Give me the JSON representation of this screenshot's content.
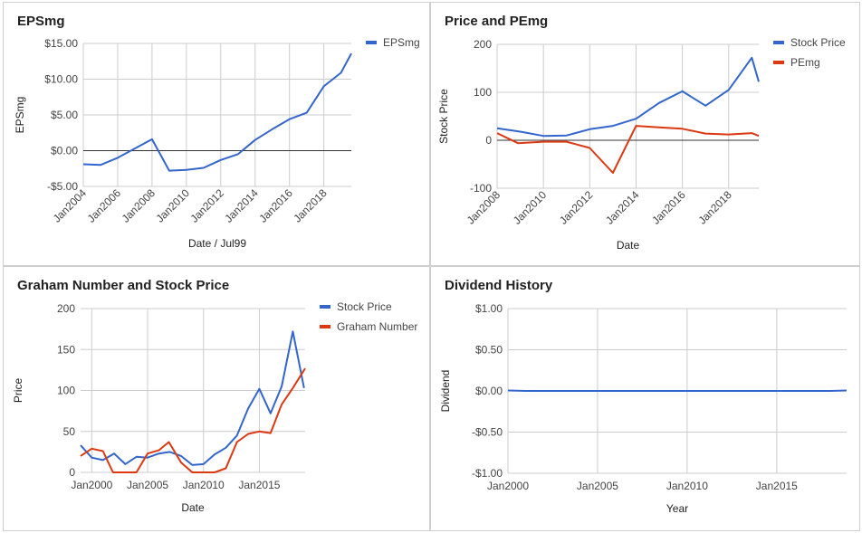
{
  "colors": {
    "blue": "#3366cc",
    "red": "#dc3912",
    "grid": "#cccccc",
    "axis_text": "#444444",
    "zero": "#333333"
  },
  "chart_data": [
    {
      "type": "line",
      "title": "EPSmg",
      "xlabel": "Date / Jul99",
      "ylabel": "EPSmg",
      "y_ticks": [
        {
          "v": 15,
          "label": "$15.00"
        },
        {
          "v": 10,
          "label": "$10.00"
        },
        {
          "v": 5,
          "label": "$5.00"
        },
        {
          "v": 0,
          "label": "$0.00"
        },
        {
          "v": -5,
          "label": "-$5.00"
        }
      ],
      "ylim": [
        -5,
        15
      ],
      "xlim": [
        2004,
        2019.6
      ],
      "x_ticks": [
        {
          "v": 2004,
          "label": "Jan2004"
        },
        {
          "v": 2006,
          "label": "Jan2006"
        },
        {
          "v": 2008,
          "label": "Jan2008"
        },
        {
          "v": 2010,
          "label": "Jan2010"
        },
        {
          "v": 2012,
          "label": "Jan2012"
        },
        {
          "v": 2014,
          "label": "Jan2014"
        },
        {
          "v": 2016,
          "label": "Jan2016"
        },
        {
          "v": 2018,
          "label": "Jan2018"
        }
      ],
      "rotate_x": true,
      "legend_position": "right",
      "series": [
        {
          "name": "EPSmg",
          "color": "#3366cc",
          "points": [
            [
              2004,
              -1.9
            ],
            [
              2005,
              -2.0
            ],
            [
              2006,
              -1.0
            ],
            [
              2007,
              0.3
            ],
            [
              2008,
              1.6
            ],
            [
              2009,
              -2.8
            ],
            [
              2010,
              -2.7
            ],
            [
              2011,
              -2.4
            ],
            [
              2012,
              -1.3
            ],
            [
              2013,
              -0.5
            ],
            [
              2014,
              1.5
            ],
            [
              2015,
              3.0
            ],
            [
              2016,
              4.4
            ],
            [
              2017,
              5.3
            ],
            [
              2018,
              9.0
            ],
            [
              2019,
              10.9
            ],
            [
              2019.6,
              13.6
            ]
          ]
        }
      ]
    },
    {
      "type": "line",
      "title": "Price and PEmg",
      "xlabel": "Date",
      "ylabel": "Stock Price",
      "y_ticks": [
        {
          "v": 200,
          "label": "200"
        },
        {
          "v": 100,
          "label": "100"
        },
        {
          "v": 0,
          "label": "0"
        },
        {
          "v": -100,
          "label": "-100"
        }
      ],
      "ylim": [
        -100,
        200
      ],
      "xlim": [
        2008,
        2019.3
      ],
      "x_ticks": [
        {
          "v": 2008,
          "label": "Jan2008"
        },
        {
          "v": 2010,
          "label": "Jan2010"
        },
        {
          "v": 2012,
          "label": "Jan2012"
        },
        {
          "v": 2014,
          "label": "Jan2014"
        },
        {
          "v": 2016,
          "label": "Jan2016"
        },
        {
          "v": 2018,
          "label": "Jan2018"
        }
      ],
      "rotate_x": true,
      "legend_position": "right",
      "series": [
        {
          "name": "Stock Price",
          "color": "#3366cc",
          "points": [
            [
              2008,
              25
            ],
            [
              2009,
              18
            ],
            [
              2010,
              9
            ],
            [
              2011,
              10
            ],
            [
              2012,
              23
            ],
            [
              2013,
              30
            ],
            [
              2014,
              45
            ],
            [
              2015,
              78
            ],
            [
              2016,
              102
            ],
            [
              2017,
              72
            ],
            [
              2018,
              105
            ],
            [
              2019,
              172
            ],
            [
              2019.3,
              122
            ]
          ]
        },
        {
          "name": "PEmg",
          "color": "#dc3912",
          "points": [
            [
              2008,
              15
            ],
            [
              2008.9,
              -6
            ],
            [
              2010,
              -3
            ],
            [
              2011,
              -3
            ],
            [
              2012,
              -16
            ],
            [
              2013,
              -68
            ],
            [
              2014,
              30
            ],
            [
              2015,
              27
            ],
            [
              2016,
              24
            ],
            [
              2017,
              14
            ],
            [
              2018,
              12
            ],
            [
              2019,
              15
            ],
            [
              2019.3,
              9
            ]
          ]
        }
      ]
    },
    {
      "type": "line",
      "title": "Graham Number and Stock Price",
      "xlabel": "Date",
      "ylabel": "Price",
      "y_ticks": [
        {
          "v": 200,
          "label": "200"
        },
        {
          "v": 150,
          "label": "150"
        },
        {
          "v": 100,
          "label": "100"
        },
        {
          "v": 50,
          "label": "50"
        },
        {
          "v": 0,
          "label": "0"
        }
      ],
      "ylim": [
        0,
        200
      ],
      "xlim": [
        1999,
        2019.1
      ],
      "x_ticks": [
        {
          "v": 2000,
          "label": "Jan2000"
        },
        {
          "v": 2005,
          "label": "Jan2005"
        },
        {
          "v": 2010,
          "label": "Jan2010"
        },
        {
          "v": 2015,
          "label": "Jan2015"
        }
      ],
      "rotate_x": false,
      "legend_position": "right",
      "series": [
        {
          "name": "Stock Price",
          "color": "#3366cc",
          "points": [
            [
              1999,
              33
            ],
            [
              2000,
              18
            ],
            [
              2001,
              15
            ],
            [
              2002,
              23
            ],
            [
              2003,
              10
            ],
            [
              2004,
              19
            ],
            [
              2005,
              18
            ],
            [
              2006,
              23
            ],
            [
              2007,
              25
            ],
            [
              2008,
              20
            ],
            [
              2009,
              9
            ],
            [
              2010,
              10
            ],
            [
              2011,
              22
            ],
            [
              2012,
              30
            ],
            [
              2013,
              45
            ],
            [
              2014,
              78
            ],
            [
              2015,
              102
            ],
            [
              2016,
              72
            ],
            [
              2017,
              105
            ],
            [
              2018,
              172
            ],
            [
              2019,
              103
            ]
          ]
        },
        {
          "name": "Graham Number",
          "color": "#dc3912",
          "points": [
            [
              1999,
              20
            ],
            [
              2000,
              29
            ],
            [
              2001,
              26
            ],
            [
              2001.9,
              0
            ],
            [
              2004,
              0
            ],
            [
              2005,
              23
            ],
            [
              2006,
              27
            ],
            [
              2006.9,
              37
            ],
            [
              2008,
              12
            ],
            [
              2009,
              0
            ],
            [
              2011,
              0
            ],
            [
              2012,
              5
            ],
            [
              2013,
              37
            ],
            [
              2014,
              47
            ],
            [
              2015,
              50
            ],
            [
              2016,
              48
            ],
            [
              2017,
              83
            ],
            [
              2018,
              103
            ],
            [
              2019.1,
              127
            ]
          ]
        }
      ]
    },
    {
      "type": "line",
      "title": "Dividend History",
      "xlabel": "Year",
      "ylabel": "Dividend",
      "y_ticks": [
        {
          "v": 1,
          "label": "$1.00"
        },
        {
          "v": 0.5,
          "label": "$0.50"
        },
        {
          "v": 0,
          "label": "$0.00"
        },
        {
          "v": -0.5,
          "label": "-$0.50"
        },
        {
          "v": -1,
          "label": "-$1.00"
        }
      ],
      "ylim": [
        -1,
        1
      ],
      "xlim": [
        2000,
        2018.9
      ],
      "x_ticks": [
        {
          "v": 2000,
          "label": "Jan2000"
        },
        {
          "v": 2005,
          "label": "Jan2005"
        },
        {
          "v": 2010,
          "label": "Jan2010"
        },
        {
          "v": 2015,
          "label": "Jan2015"
        }
      ],
      "rotate_x": false,
      "legend_position": "none",
      "series": [
        {
          "name": "",
          "color": "#3366cc",
          "points": [
            [
              2000,
              0.005
            ],
            [
              2001,
              0.0
            ],
            [
              2018,
              0.0
            ],
            [
              2018.9,
              0.005
            ]
          ]
        }
      ]
    }
  ]
}
